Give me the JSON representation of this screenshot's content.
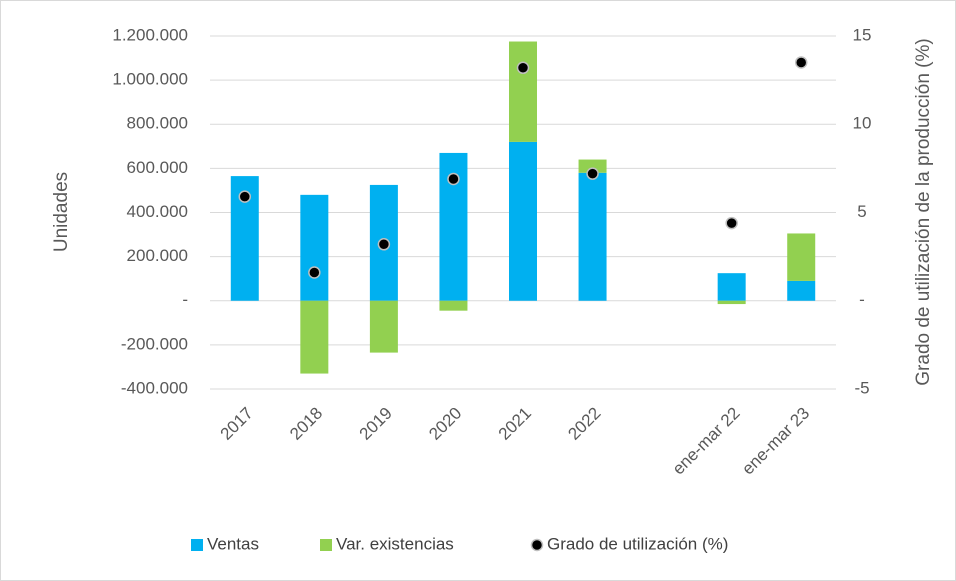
{
  "chart_data": {
    "type": "bar",
    "categories": [
      "2017",
      "2018",
      "2019",
      "2020",
      "2021",
      "2022",
      null,
      "ene-mar 22",
      "ene-mar 23"
    ],
    "stacked": true,
    "ylabel": "Unidades",
    "y2label": "Grado de utilización de la producción (%)",
    "ylim": [
      -400000,
      1200000
    ],
    "yticks": [
      {
        "value": -400000,
        "label": "-400.000"
      },
      {
        "value": -200000,
        "label": "-200.000"
      },
      {
        "value": 0,
        "label": "-"
      },
      {
        "value": 200000,
        "label": "200.000"
      },
      {
        "value": 400000,
        "label": "400.000"
      },
      {
        "value": 600000,
        "label": "600.000"
      },
      {
        "value": 800000,
        "label": "800.000"
      },
      {
        "value": 1000000,
        "label": "1.000.000"
      },
      {
        "value": 1200000,
        "label": "1.200.000"
      }
    ],
    "y2lim": [
      -5,
      15
    ],
    "y2ticks": [
      -5,
      {
        "value": 0,
        "label": "-"
      },
      5,
      10,
      15
    ],
    "grid": true,
    "legend": "bottom",
    "series": [
      {
        "name": "Ventas",
        "type": "bar",
        "color": "#00b0f0",
        "values": [
          565000,
          480000,
          525000,
          670000,
          720000,
          580000,
          null,
          125000,
          90000
        ]
      },
      {
        "name": "Var. existencias",
        "type": "bar",
        "color": "#92d050",
        "values": [
          0,
          -330000,
          -235000,
          -45000,
          455000,
          60000,
          null,
          -15000,
          215000
        ]
      },
      {
        "name": "Grado de utilización (%)",
        "type": "scatter",
        "axis": "y2",
        "color": "#000000",
        "values": [
          5.9,
          1.6,
          3.2,
          6.9,
          13.2,
          7.2,
          null,
          4.4,
          13.5
        ]
      }
    ]
  }
}
